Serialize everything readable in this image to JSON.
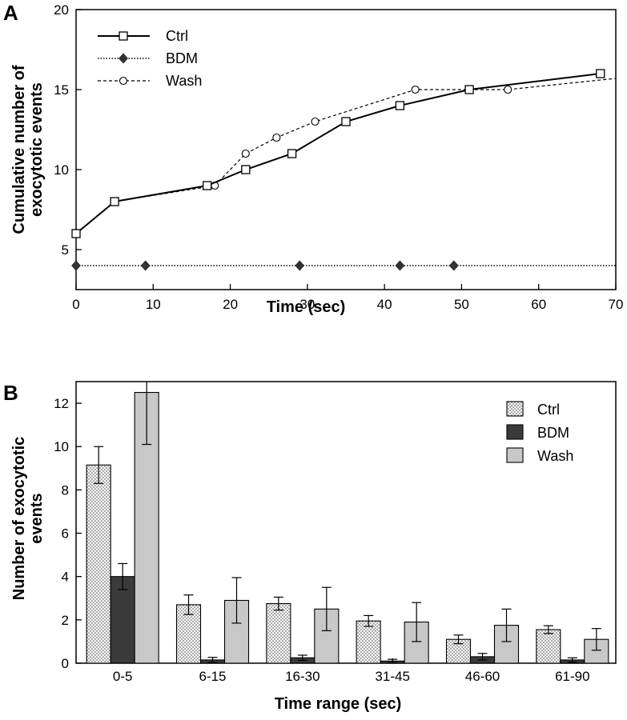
{
  "chart_data": [
    {
      "panel": "A",
      "type": "line",
      "xlabel": "Time  (sec)",
      "ylabel": [
        "Cumulative number of",
        "exocytotic  events"
      ],
      "xlim": [
        0,
        70
      ],
      "ylim": [
        2.5,
        20
      ],
      "xticks": [
        0,
        10,
        20,
        30,
        40,
        50,
        60,
        70
      ],
      "yticks": [
        5,
        10,
        15,
        20
      ],
      "grid": false,
      "legend_position": "top-left",
      "series": [
        {
          "name": "Ctrl",
          "line": "solid",
          "marker": "open-square",
          "x": [
            0,
            5,
            17,
            22,
            28,
            35,
            42,
            51,
            68
          ],
          "y": [
            6,
            8,
            9,
            10,
            11,
            13,
            14,
            15,
            16
          ]
        },
        {
          "name": "BDM",
          "line": "dotted",
          "marker": "filled-diamond",
          "x": [
            0,
            9,
            29,
            42,
            49,
            70
          ],
          "y": [
            4,
            4,
            4,
            4,
            4,
            4
          ]
        },
        {
          "name": "Wash",
          "line": "dashed",
          "marker": "open-circle",
          "x": [
            0,
            5,
            18,
            22,
            26,
            31,
            44,
            56,
            70
          ],
          "y": [
            6,
            8,
            9,
            11,
            12,
            13,
            15,
            15,
            15.7
          ]
        }
      ]
    },
    {
      "panel": "B",
      "type": "bar",
      "xlabel": "Time  range  (sec)",
      "ylabel": [
        "Number of exocytotic",
        "events"
      ],
      "ylim": [
        0,
        13
      ],
      "yticks": [
        0,
        2,
        4,
        6,
        8,
        10,
        12
      ],
      "grid": false,
      "legend_position": "top-right",
      "categories": [
        "0-5",
        "6-15",
        "16-30",
        "31-45",
        "46-60",
        "61-90"
      ],
      "series": [
        {
          "name": "Ctrl",
          "fill": "dotted-light",
          "values": [
            9.15,
            2.7,
            2.75,
            1.95,
            1.1,
            1.55
          ],
          "errors": [
            0.85,
            0.45,
            0.3,
            0.25,
            0.2,
            0.18
          ]
        },
        {
          "name": "BDM",
          "fill": "dark",
          "values": [
            4.0,
            0.15,
            0.25,
            0.1,
            0.3,
            0.15
          ],
          "errors": [
            0.6,
            0.12,
            0.12,
            0.08,
            0.15,
            0.1
          ]
        },
        {
          "name": "Wash",
          "fill": "light-gray",
          "values": [
            12.5,
            2.9,
            2.5,
            1.9,
            1.75,
            1.1
          ],
          "errors": [
            2.4,
            1.05,
            1.0,
            0.9,
            0.75,
            0.5
          ]
        }
      ]
    }
  ]
}
